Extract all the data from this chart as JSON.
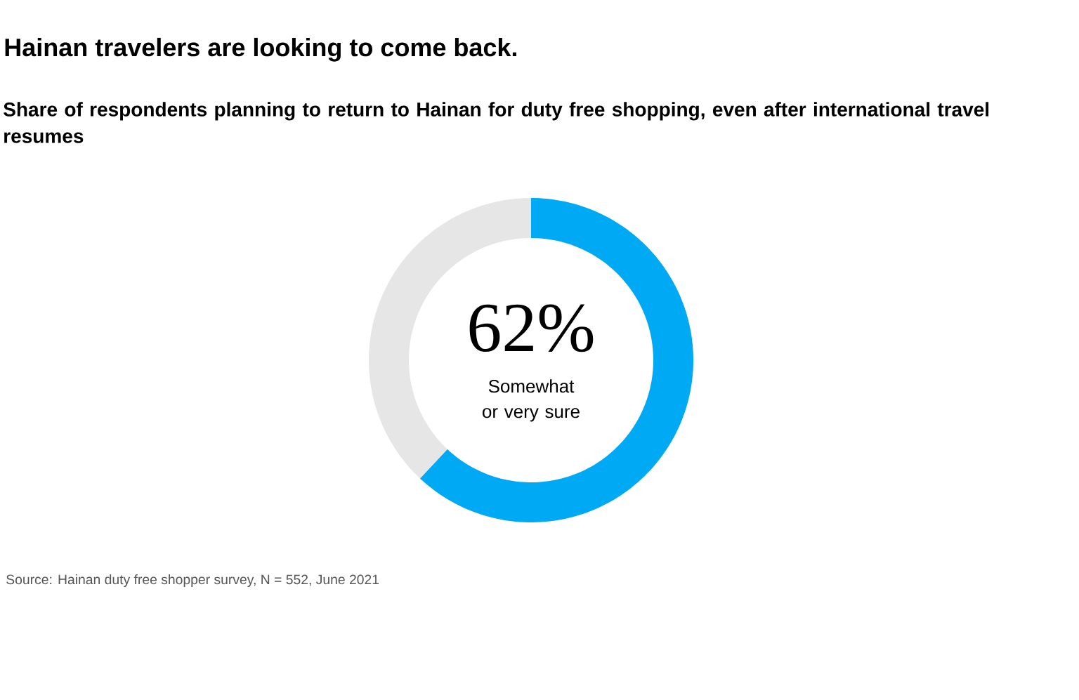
{
  "chart_data": {
    "type": "donut",
    "title": "Hainan travelers are looking to come back.",
    "subtitle": "Share of respondents planning to return to Hainan for duty free shopping, even after international travel resumes",
    "categories": [
      "Somewhat or very sure",
      null
    ],
    "values": [
      62,
      38
    ],
    "colors": [
      "#00a9f4",
      "#e6e6e6"
    ],
    "value_labels": [
      "62%",
      null
    ],
    "annotations": [
      "Source: Hainan duty free shopper survey, N = 552, June 2021"
    ]
  }
}
